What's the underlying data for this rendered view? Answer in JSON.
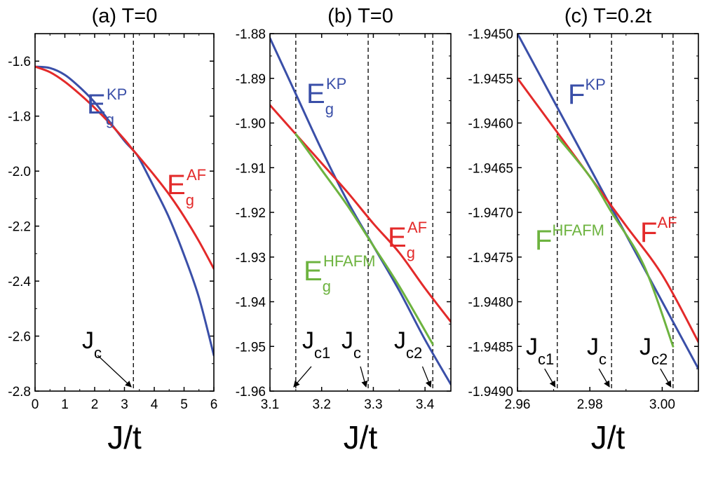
{
  "chart_data": [
    {
      "type": "line",
      "title": "(a) T=0",
      "xlabel": "J/t",
      "ylabel": "",
      "xlim": [
        0,
        6
      ],
      "ylim": [
        -2.8,
        -1.5
      ],
      "xticks": [
        "0",
        "1",
        "2",
        "3",
        "4",
        "5",
        "6"
      ],
      "xtick_values": [
        0,
        1,
        2,
        3,
        4,
        5,
        6
      ],
      "yticks": [
        "-1.6",
        "-1.8",
        "-2.0",
        "-2.2",
        "-2.4",
        "-2.6",
        "-2.8"
      ],
      "ytick_values": [
        -1.6,
        -1.8,
        -2.0,
        -2.2,
        -2.4,
        -2.6,
        -2.8
      ],
      "series": [
        {
          "name": "KP",
          "label_main": "E",
          "label_sub": "g",
          "label_sup": "KP",
          "color": "#3a4fa8",
          "x": [
            0,
            0.5,
            1,
            1.5,
            2,
            2.5,
            3,
            3.3,
            3.5,
            4,
            4.5,
            5,
            5.5,
            6
          ],
          "y": [
            -1.62,
            -1.625,
            -1.65,
            -1.695,
            -1.75,
            -1.82,
            -1.89,
            -1.925,
            -1.955,
            -2.06,
            -2.17,
            -2.305,
            -2.46,
            -2.67
          ]
        },
        {
          "name": "AF",
          "label_main": "E",
          "label_sub": "g",
          "label_sup": "AF",
          "color": "#e32a2a",
          "x": [
            0,
            0.5,
            1,
            1.5,
            2,
            2.5,
            3,
            3.3,
            3.5,
            4,
            4.5,
            5,
            5.5,
            6
          ],
          "y": [
            -1.62,
            -1.64,
            -1.675,
            -1.72,
            -1.77,
            -1.825,
            -1.885,
            -1.925,
            -1.95,
            -2.015,
            -2.085,
            -2.165,
            -2.255,
            -2.355
          ]
        }
      ],
      "vlines": [
        {
          "x": 3.3,
          "label_main": "J",
          "label_sub": "c",
          "arrow_from": [
            2.1,
            -2.67
          ]
        }
      ]
    },
    {
      "type": "line",
      "title": "(b) T=0",
      "xlabel": "J/t",
      "ylabel": "",
      "xlim": [
        3.1,
        3.45
      ],
      "ylim": [
        -1.96,
        -1.88
      ],
      "xticks": [
        "3.1",
        "3.2",
        "3.3",
        "3.4"
      ],
      "xtick_values": [
        3.1,
        3.2,
        3.3,
        3.4
      ],
      "yticks": [
        "-1.88",
        "-1.89",
        "-1.90",
        "-1.91",
        "-1.92",
        "-1.93",
        "-1.94",
        "-1.95",
        "-1.96"
      ],
      "ytick_values": [
        -1.88,
        -1.89,
        -1.9,
        -1.91,
        -1.92,
        -1.93,
        -1.94,
        -1.95,
        -1.96
      ],
      "series": [
        {
          "name": "KP",
          "label_main": "E",
          "label_sub": "g",
          "label_sup": "KP",
          "color": "#3a4fa8",
          "x": [
            3.1,
            3.15,
            3.2,
            3.25,
            3.3,
            3.35,
            3.4,
            3.45
          ],
          "y": [
            -1.881,
            -1.8935,
            -1.906,
            -1.9175,
            -1.9275,
            -1.9375,
            -1.9485,
            -1.9585
          ]
        },
        {
          "name": "AF",
          "label_main": "E",
          "label_sub": "g",
          "label_sup": "AF",
          "color": "#e32a2a",
          "x": [
            3.1,
            3.15,
            3.2,
            3.25,
            3.3,
            3.35,
            3.4,
            3.45
          ],
          "y": [
            -1.896,
            -1.9025,
            -1.909,
            -1.9155,
            -1.9225,
            -1.929,
            -1.937,
            -1.9445
          ]
        },
        {
          "name": "HFAFM",
          "label_main": "E",
          "label_sub": "g",
          "label_sup": "HFAFM",
          "color": "#6db33f",
          "x": [
            3.15,
            3.2,
            3.25,
            3.3,
            3.35,
            3.415
          ],
          "y": [
            -1.9025,
            -1.9105,
            -1.9185,
            -1.9275,
            -1.9365,
            -1.9495
          ]
        }
      ],
      "vlines": [
        {
          "x": 3.15,
          "label_main": "J",
          "label_sub": "c1",
          "arrow_from": [
            3.18,
            -1.9545
          ]
        },
        {
          "x": 3.29,
          "label_main": "J",
          "label_sub": "c",
          "arrow_from": [
            3.275,
            -1.9545
          ]
        },
        {
          "x": 3.415,
          "label_main": "J",
          "label_sub": "c2",
          "arrow_from": [
            3.395,
            -1.9545
          ]
        }
      ]
    },
    {
      "type": "line",
      "title": "(c) T=0.2t",
      "xlabel": "J/t",
      "ylabel": "",
      "xlim": [
        2.96,
        3.01
      ],
      "ylim": [
        -1.949,
        -1.945
      ],
      "xticks": [
        "2.96",
        "2.98",
        "3.00"
      ],
      "xtick_values": [
        2.96,
        2.98,
        3.0
      ],
      "yticks": [
        "-1.9450",
        "-1.9455",
        "-1.9460",
        "-1.9465",
        "-1.9470",
        "-1.9475",
        "-1.9480",
        "-1.9485",
        "-1.9490"
      ],
      "ytick_values": [
        -1.945,
        -1.9455,
        -1.946,
        -1.9465,
        -1.947,
        -1.9475,
        -1.948,
        -1.9485,
        -1.949
      ],
      "series": [
        {
          "name": "KP",
          "label_main": "F",
          "label_sub": "",
          "label_sup": "KP",
          "color": "#3a4fa8",
          "x": [
            2.96,
            2.97,
            2.98,
            2.99,
            3.0,
            3.01
          ],
          "y": [
            -1.945,
            -1.94575,
            -1.9465,
            -1.94725,
            -1.948,
            -1.94875
          ]
        },
        {
          "name": "AF",
          "label_main": "F",
          "label_sub": "",
          "label_sup": "AF",
          "color": "#e32a2a",
          "x": [
            2.96,
            2.97,
            2.98,
            2.99,
            3.0,
            3.01
          ],
          "y": [
            -1.9455,
            -1.94605,
            -1.9466,
            -1.94715,
            -1.9477,
            -1.94845
          ]
        },
        {
          "name": "HFAFM",
          "label_main": "F",
          "label_sub": "",
          "label_sup": "HFAFM",
          "color": "#6db33f",
          "x": [
            2.971,
            2.98,
            2.986,
            2.995,
            3.003
          ],
          "y": [
            -1.94615,
            -1.9466,
            -1.947,
            -1.9476,
            -1.9485
          ]
        }
      ],
      "vlines": [
        {
          "x": 2.971,
          "label_main": "J",
          "label_sub": "c1",
          "arrow_from": [
            2.9675,
            -1.94875
          ]
        },
        {
          "x": 2.986,
          "label_main": "J",
          "label_sub": "c",
          "arrow_from": [
            2.9825,
            -1.94875
          ]
        },
        {
          "x": 3.003,
          "label_main": "J",
          "label_sub": "c2",
          "arrow_from": [
            2.9995,
            -1.94875
          ]
        }
      ]
    }
  ]
}
